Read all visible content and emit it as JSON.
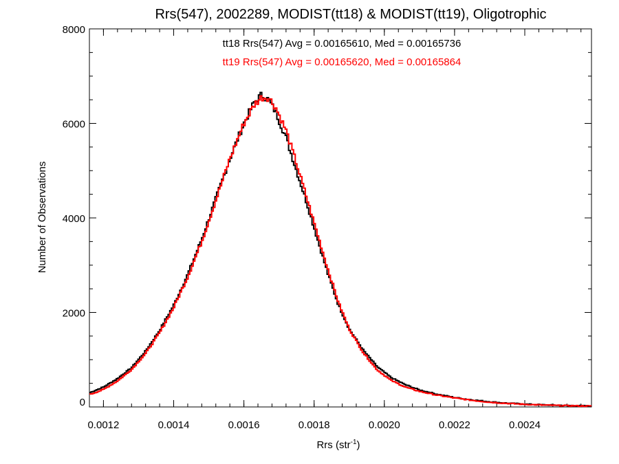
{
  "chart_data": {
    "type": "line",
    "title": "Rrs(547), 2002289, MODIST(tt18) & MODIST(tt19), Oligotrophic",
    "xlabel_base": "Rrs (str",
    "xlabel_sup": "-1",
    "xlabel_close": ")",
    "ylabel": "Number of Observations",
    "xlim": [
      0.00116,
      0.00259
    ],
    "ylim": [
      0,
      8000
    ],
    "xticks": [
      0.0012,
      0.0014,
      0.0016,
      0.0018,
      0.002,
      0.0022,
      0.0024
    ],
    "xtick_labels": [
      "0.0012",
      "0.0014",
      "0.0016",
      "0.0018",
      "0.0020",
      "0.0022",
      "0.0024"
    ],
    "yticks": [
      0,
      2000,
      4000,
      6000,
      8000
    ],
    "ytick_labels": [
      "0",
      "2000",
      "4000",
      "6000",
      "8000"
    ],
    "annotations": [
      {
        "text": "tt18 Rrs(547) Avg = 0.00165610, Med = 0.00165736",
        "color": "#000000"
      },
      {
        "text": "tt19 Rrs(547) Avg = 0.00165620, Med = 0.00165864",
        "color": "#ff0000"
      }
    ],
    "series": [
      {
        "color": "#000000",
        "points": [
          [
            0.00116,
            300
          ],
          [
            0.0012,
            420
          ],
          [
            0.00124,
            600
          ],
          [
            0.00128,
            830
          ],
          [
            0.00132,
            1180
          ],
          [
            0.00136,
            1620
          ],
          [
            0.0014,
            2150
          ],
          [
            0.00144,
            2800
          ],
          [
            0.00148,
            3550
          ],
          [
            0.00152,
            4400
          ],
          [
            0.00156,
            5250
          ],
          [
            0.0016,
            6000
          ],
          [
            0.00163,
            6450
          ],
          [
            0.00165,
            6600
          ],
          [
            0.00167,
            6500
          ],
          [
            0.00169,
            6250
          ],
          [
            0.00172,
            5700
          ],
          [
            0.00175,
            5000
          ],
          [
            0.00178,
            4300
          ],
          [
            0.00181,
            3550
          ],
          [
            0.00184,
            2800
          ],
          [
            0.00187,
            2150
          ],
          [
            0.0019,
            1650
          ],
          [
            0.00194,
            1200
          ],
          [
            0.00198,
            850
          ],
          [
            0.00202,
            620
          ],
          [
            0.00206,
            470
          ],
          [
            0.0021,
            360
          ],
          [
            0.00215,
            270
          ],
          [
            0.0022,
            200
          ],
          [
            0.00225,
            150
          ],
          [
            0.0023,
            110
          ],
          [
            0.00235,
            80
          ],
          [
            0.0024,
            60
          ],
          [
            0.00245,
            45
          ],
          [
            0.0025,
            35
          ],
          [
            0.00255,
            25
          ],
          [
            0.00259,
            20
          ]
        ]
      },
      {
        "color": "#ff0000",
        "points": [
          [
            0.00116,
            260
          ],
          [
            0.0012,
            370
          ],
          [
            0.00124,
            550
          ],
          [
            0.00128,
            790
          ],
          [
            0.00132,
            1130
          ],
          [
            0.00136,
            1570
          ],
          [
            0.0014,
            2100
          ],
          [
            0.00144,
            2750
          ],
          [
            0.00148,
            3500
          ],
          [
            0.00152,
            4370
          ],
          [
            0.00156,
            5250
          ],
          [
            0.0016,
            6000
          ],
          [
            0.00163,
            6400
          ],
          [
            0.00165,
            6550
          ],
          [
            0.00167,
            6550
          ],
          [
            0.00169,
            6350
          ],
          [
            0.00172,
            5850
          ],
          [
            0.00175,
            5150
          ],
          [
            0.00178,
            4400
          ],
          [
            0.00181,
            3650
          ],
          [
            0.00184,
            2900
          ],
          [
            0.00187,
            2200
          ],
          [
            0.0019,
            1650
          ],
          [
            0.00194,
            1150
          ],
          [
            0.00198,
            780
          ],
          [
            0.00202,
            560
          ],
          [
            0.00206,
            420
          ],
          [
            0.0021,
            330
          ],
          [
            0.00215,
            250
          ],
          [
            0.0022,
            190
          ],
          [
            0.00225,
            140
          ],
          [
            0.0023,
            100
          ],
          [
            0.00235,
            75
          ],
          [
            0.0024,
            55
          ],
          [
            0.00245,
            40
          ],
          [
            0.0025,
            30
          ],
          [
            0.00255,
            22
          ],
          [
            0.00259,
            18
          ]
        ]
      }
    ]
  }
}
